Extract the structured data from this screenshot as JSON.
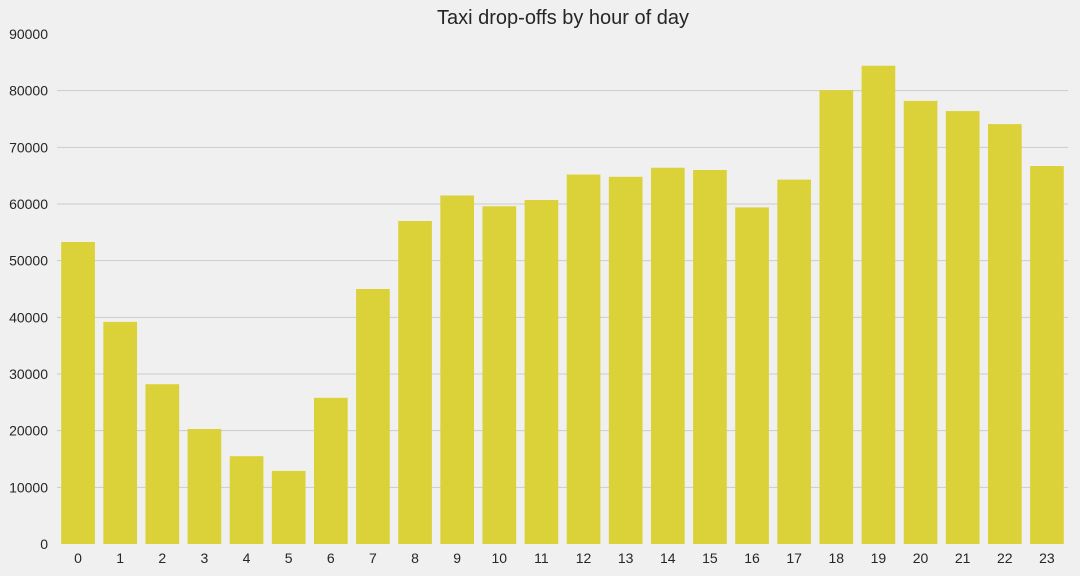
{
  "chart_data": {
    "type": "bar",
    "title": "Taxi drop-offs by hour of day",
    "xlabel": "",
    "ylabel": "",
    "categories": [
      "0",
      "1",
      "2",
      "3",
      "4",
      "5",
      "6",
      "7",
      "8",
      "9",
      "10",
      "11",
      "12",
      "13",
      "14",
      "15",
      "16",
      "17",
      "18",
      "19",
      "20",
      "21",
      "22",
      "23"
    ],
    "values": [
      53300,
      39200,
      28200,
      20300,
      15500,
      12900,
      25800,
      45000,
      57000,
      61500,
      59600,
      60700,
      65200,
      64800,
      66400,
      66000,
      59400,
      64300,
      80100,
      84400,
      78200,
      76400,
      74100,
      66700
    ],
    "ylim": [
      0,
      90000
    ],
    "yticks": [
      "0",
      "10000",
      "20000",
      "30000",
      "40000",
      "50000",
      "60000",
      "70000",
      "80000",
      "90000"
    ],
    "grid": true,
    "colors": {
      "bar": "#dbd23a",
      "background": "#f0f0f0",
      "grid": "#cbcbcb",
      "text": "#262626"
    }
  }
}
